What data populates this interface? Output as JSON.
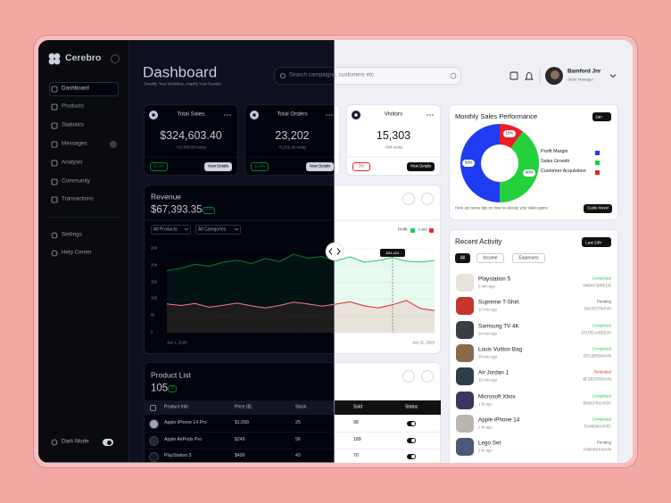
{
  "sidebar": {
    "brand": "Cerebro",
    "nav": [
      "Dashboard",
      "Products",
      "Statistics",
      "Messages",
      "Analysis",
      "Community",
      "Transactions"
    ],
    "bottom_nav": [
      "Settings",
      "Help Center"
    ],
    "dark_mode": "Dark Mode"
  },
  "header": {
    "title": "Dashboard",
    "subtitle": "Simplify Your Workflow, Amplify Your Results",
    "search_placeholder": "Search campaigns, customers etc",
    "user": {
      "name": "Bamford Jnr",
      "role": "Store Manager"
    }
  },
  "stats": [
    {
      "label": "Total Sales",
      "value": "$324,603.40",
      "note": "+10,000.00 today",
      "change": "20.0%",
      "change_color": "#22c55e",
      "action": "View Details"
    },
    {
      "label": "Total Orders",
      "value": "23,202",
      "note": "+5,202.00 today",
      "change": "11.8%",
      "change_color": "#22c55e",
      "action": "View Details"
    },
    {
      "label": "Visitors",
      "value": "15,303",
      "note": "-394 today",
      "change": "3%",
      "change_color": "#e0252b",
      "action": "View Details"
    }
  ],
  "revenue": {
    "title": "Revenue",
    "total": "$67,393.35",
    "change": "+2.4%",
    "filters": [
      "All Products",
      "All Categories"
    ],
    "tooltip": "$34,424",
    "chart": {
      "type": "line",
      "categories": [
        "Jan 1, 2025",
        null,
        null,
        null,
        null,
        null,
        null,
        null,
        null,
        null,
        null,
        null,
        null,
        null,
        null,
        null,
        null,
        null,
        null,
        "Jan 31, 2025"
      ],
      "series": [
        {
          "name": "Profit",
          "color": "#22c55e",
          "values": [
            18500,
            19200,
            20400,
            19800,
            21000,
            21600,
            20600,
            22100,
            21200,
            23400,
            22200,
            22700,
            21400,
            22600,
            21000,
            21500,
            22400,
            21300,
            21100,
            21500
          ]
        },
        {
          "name": "Loss",
          "color": "#e0252b",
          "values": [
            8600,
            8100,
            8700,
            7600,
            8200,
            8800,
            8000,
            7400,
            8100,
            9100,
            8600,
            7900,
            8500,
            9200,
            8000,
            7400,
            8300,
            9600,
            7200,
            6600
          ]
        }
      ],
      "ylim": [
        0,
        25000
      ],
      "yticks": [
        0,
        {
          "value": 5000,
          "label": "5k"
        },
        {
          "value": 10000,
          "label": "10k"
        },
        {
          "value": 15000,
          "label": "15k"
        },
        {
          "value": 20000,
          "label": "20k"
        },
        {
          "value": 25000,
          "label": "25k"
        }
      ],
      "grid": true
    }
  },
  "products": {
    "title": "Product List",
    "count": "105",
    "change": "+5",
    "columns": [
      "Product Info",
      "Price ($)",
      "Stock",
      "Sold",
      "Status"
    ],
    "rows": [
      [
        "Apple iPhone 14 Pro",
        "$1,099",
        "25",
        "98"
      ],
      [
        "Apple AirPods Pro",
        "$249",
        "56",
        "189"
      ],
      [
        "PlayStation 5",
        "$499",
        "43",
        "70"
      ]
    ]
  },
  "monthly_sales": {
    "title": "Monthly Sales Performance",
    "period": "Jan",
    "chart": {
      "type": "pie",
      "categories": [
        "Profit Margin",
        "Sales Growth",
        "Customer Acquisition"
      ],
      "values": [
        50,
        40,
        10
      ],
      "value_labels": [
        "50%",
        "40%",
        "10%"
      ],
      "colors": [
        "#1f3cf2",
        "#22d13c",
        "#ee1c24"
      ]
    },
    "tip": "Here are some tips on how to elevate your sales game",
    "action": "Guide Novel"
  },
  "activity": {
    "title": "Recent Activity",
    "period": "Last 24h",
    "tabs": [
      "All",
      "Income",
      "Expenses"
    ],
    "items": [
      {
        "name": "Playstation 5",
        "time": "5 min ago",
        "status": "Completed",
        "status_color": "#22c55e",
        "code": "SMDKFJDREDO"
      },
      {
        "name": "Supreme T-Shirt",
        "time": "10 min ago",
        "status": "Pending",
        "status_color": "#555555",
        "code": "DKCFE7FKFVK"
      },
      {
        "name": "Samsung TV 4K",
        "time": "24 min ago",
        "status": "Completed",
        "status_color": "#22c55e",
        "code": "STUTEAAREEVK"
      },
      {
        "name": "Louis Vuitton Bag",
        "time": "30 min ago",
        "status": "Completed",
        "status_color": "#22c55e",
        "code": "EFCJDRDDSVN"
      },
      {
        "name": "Air Jordan 1",
        "time": "33 min ago",
        "status": "Refunded",
        "status_color": "#e0252b",
        "code": "BFGEFFRDOVN"
      },
      {
        "name": "Microsoft Xbox",
        "time": "1 hr ago",
        "status": "Completed",
        "status_color": "#22c55e",
        "code": "EKDCFRGVFDF"
      },
      {
        "name": "Apple iPhone 14",
        "time": "1 hr ago",
        "status": "Completed",
        "status_color": "#22c55e",
        "code": "TGHBDKUVFEF"
      },
      {
        "name": "Lego Set",
        "time": "3 hr ago",
        "status": "Pending",
        "status_color": "#555555",
        "code": "FVBHBCKSVVN"
      }
    ]
  }
}
